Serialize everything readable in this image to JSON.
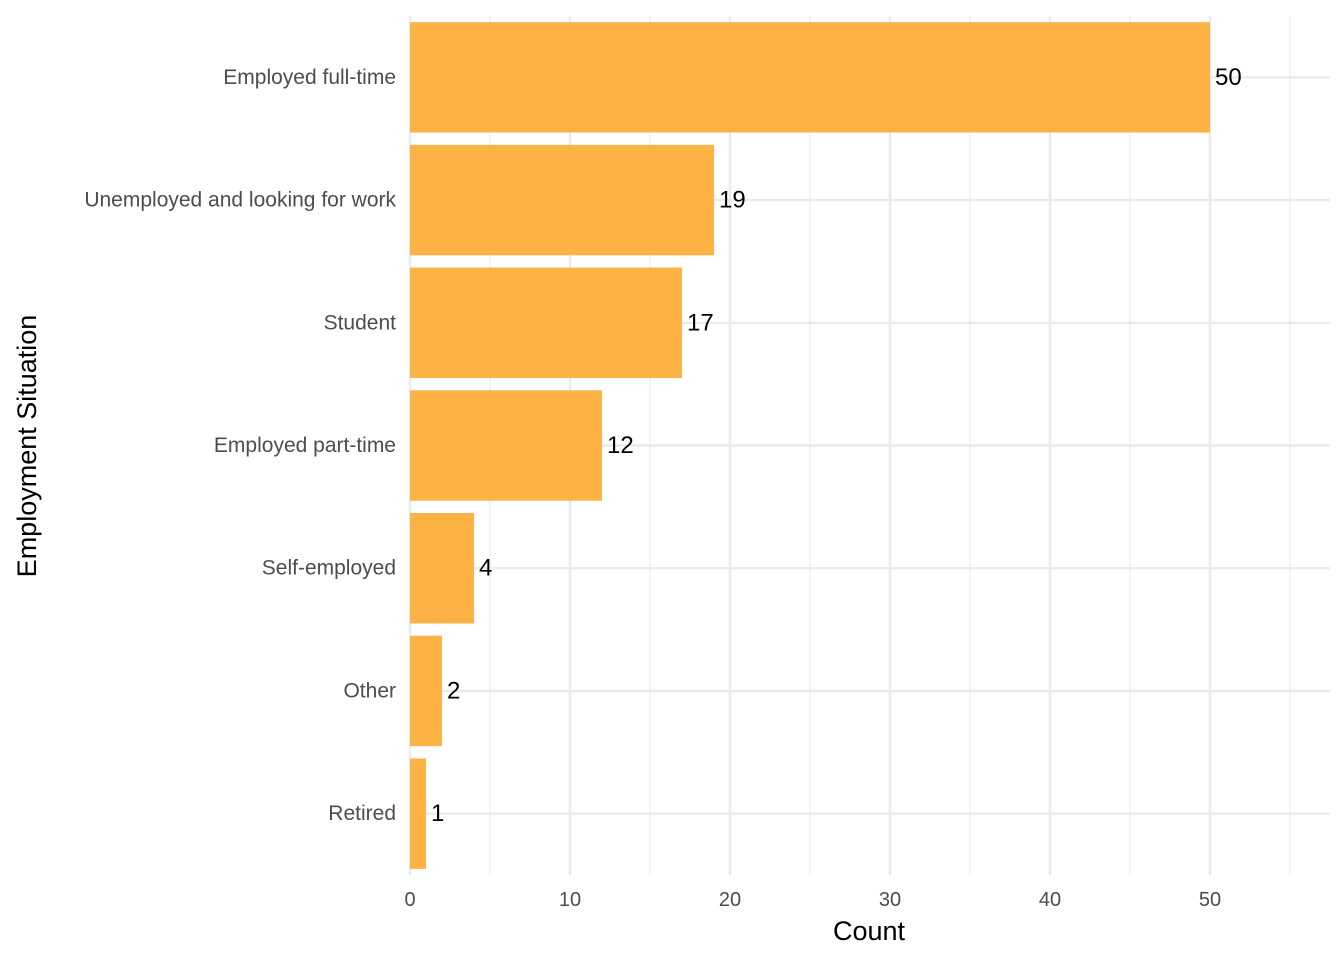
{
  "chart_data": {
    "type": "bar",
    "orientation": "horizontal",
    "title": "",
    "xlabel": "Count",
    "ylabel": "Employment Situation",
    "categories": [
      "Employed full-time",
      "Unemployed and looking for work",
      "Student",
      "Employed part-time",
      "Self-employed",
      "Other",
      "Retired"
    ],
    "values": [
      50,
      19,
      17,
      12,
      4,
      2,
      1
    ],
    "xlim": [
      0,
      57.5
    ],
    "xticks": [
      0,
      10,
      20,
      30,
      40,
      50
    ],
    "grid": true,
    "legend": "none",
    "bar_color": "#FDB245",
    "grid_color": "#EBEBEB"
  }
}
